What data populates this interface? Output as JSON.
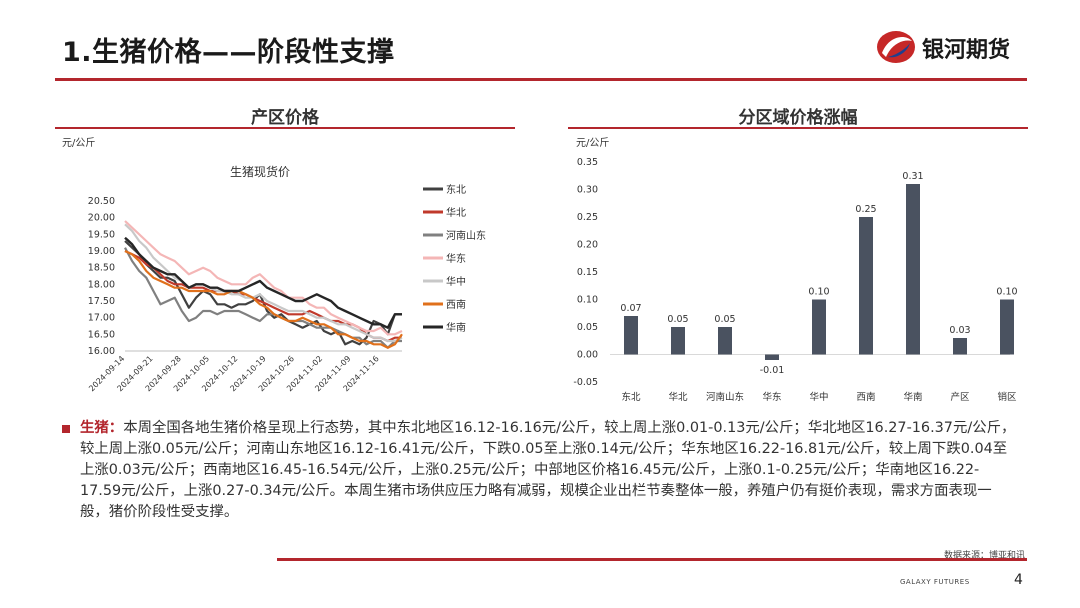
{
  "header": {
    "title": "1.生猪价格——阶段性支撑",
    "logo_text": "银河期货"
  },
  "left_panel": {
    "title": "产区价格",
    "unit": "元/公斤"
  },
  "right_panel": {
    "title": "分区域价格涨幅",
    "unit": "元/公斤"
  },
  "summary": {
    "lead": "生猪：",
    "text": "本周全国各地生猪价格呈现上行态势，其中东北地区16.12-16.16元/公斤，较上周上涨0.01-0.13元/公斤；华北地区16.27-16.37元/公斤，较上周上涨0.05元/公斤；河南山东地区16.12-16.41元/公斤，下跌0.05至上涨0.14元/公斤；华东地区16.22-16.81元/公斤，较上周下跌0.04至上涨0.03元/公斤；西南地区16.45-16.54元/公斤，上涨0.25元/公斤；中部地区价格16.45元/公斤，上涨0.1-0.25元/公斤；华南地区16.22-17.59元/公斤，上涨0.27-0.34元/公斤。本周生猪市场供应压力略有减弱，规模企业出栏节奏整体一般，养殖户仍有挺价表现，需求方面表现一般，猪价阶段性受支撑。"
  },
  "footer": {
    "source": "数据来源：博亚和讯",
    "brand": "GALAXY FUTURES",
    "page_number": "4"
  },
  "chart_data": [
    {
      "type": "line",
      "title": "生猪现货价",
      "ylim": [
        16.0,
        20.5
      ],
      "yticks": [
        "20.50",
        "20.00",
        "19.50",
        "19.00",
        "18.50",
        "18.00",
        "17.50",
        "17.00",
        "16.50",
        "16.00"
      ],
      "xticks": [
        "2024-09-14",
        "2024-09-21",
        "2024-09-28",
        "2024-10-05",
        "2024-10-12",
        "2024-10-19",
        "2024-10-26",
        "2024-11-02",
        "2024-11-09",
        "2024-11-16"
      ],
      "legend_position": "right",
      "series": [
        {
          "name": "东北",
          "color": "#404040",
          "values": [
            19.3,
            19.1,
            18.9,
            18.6,
            18.4,
            18.2,
            18.2,
            18.1,
            17.7,
            17.3,
            17.6,
            17.8,
            17.7,
            17.4,
            17.4,
            17.3,
            17.4,
            17.4,
            17.5,
            17.7,
            17.2,
            17.0,
            17.1,
            16.9,
            16.8,
            16.7,
            16.8,
            16.9,
            16.6,
            16.5,
            16.6,
            16.2,
            16.3,
            16.2,
            16.4,
            16.9,
            16.8,
            16.5,
            17.1,
            17.1
          ]
        },
        {
          "name": "华北",
          "color": "#c0392b",
          "values": [
            19.0,
            18.9,
            18.8,
            18.6,
            18.5,
            18.3,
            18.1,
            18.0,
            18.0,
            17.9,
            17.9,
            17.9,
            17.8,
            17.8,
            17.8,
            17.8,
            17.7,
            17.7,
            17.6,
            17.5,
            17.4,
            17.3,
            17.2,
            17.1,
            17.1,
            17.1,
            17.2,
            17.1,
            17.0,
            16.9,
            16.9,
            16.8,
            16.8,
            16.7,
            16.5,
            16.4,
            16.4,
            16.3,
            16.4,
            16.4
          ]
        },
        {
          "name": "河南山东",
          "color": "#808080",
          "values": [
            19.1,
            18.7,
            18.4,
            18.2,
            17.8,
            17.4,
            17.5,
            17.6,
            17.2,
            16.9,
            17.0,
            17.2,
            17.2,
            17.1,
            17.2,
            17.2,
            17.2,
            17.1,
            17.0,
            16.9,
            17.1,
            17.1,
            17.0,
            16.9,
            16.9,
            16.9,
            16.8,
            16.7,
            16.7,
            16.7,
            16.6,
            16.5,
            16.4,
            16.4,
            16.2,
            16.3,
            16.3,
            16.1,
            16.3,
            16.3
          ]
        },
        {
          "name": "华东",
          "color": "#f4b6b6",
          "values": [
            19.9,
            19.7,
            19.5,
            19.3,
            19.1,
            18.9,
            18.8,
            18.7,
            18.5,
            18.3,
            18.4,
            18.5,
            18.4,
            18.2,
            18.1,
            18.0,
            18.0,
            18.0,
            18.2,
            18.3,
            18.1,
            17.9,
            17.8,
            17.6,
            17.6,
            17.6,
            17.4,
            17.3,
            17.3,
            17.1,
            17.0,
            16.9,
            16.8,
            16.7,
            16.6,
            16.6,
            16.7,
            16.5,
            16.5,
            16.6
          ]
        },
        {
          "name": "华中",
          "color": "#c8c8c8",
          "values": [
            19.8,
            19.6,
            19.3,
            19.1,
            18.8,
            18.6,
            18.4,
            18.2,
            18.1,
            17.9,
            18.0,
            18.0,
            17.9,
            17.8,
            17.8,
            17.7,
            17.7,
            17.6,
            17.6,
            17.7,
            17.5,
            17.4,
            17.3,
            17.2,
            17.2,
            17.2,
            17.1,
            17.0,
            17.0,
            16.9,
            16.8,
            16.8,
            16.7,
            16.6,
            16.5,
            16.4,
            16.4,
            16.3,
            16.3,
            16.4
          ]
        },
        {
          "name": "西南",
          "color": "#e0701b",
          "values": [
            19.0,
            18.9,
            18.7,
            18.4,
            18.2,
            18.1,
            18.0,
            17.9,
            17.9,
            17.8,
            17.8,
            17.8,
            17.8,
            17.7,
            17.7,
            17.8,
            17.8,
            17.7,
            17.6,
            17.4,
            17.3,
            17.1,
            17.0,
            16.9,
            16.9,
            17.0,
            16.9,
            16.8,
            16.8,
            16.7,
            16.5,
            16.5,
            16.4,
            16.3,
            16.3,
            16.2,
            16.2,
            16.1,
            16.2,
            16.5
          ]
        },
        {
          "name": "华南",
          "color": "#262626",
          "values": [
            19.4,
            19.2,
            18.9,
            18.7,
            18.5,
            18.4,
            18.3,
            18.3,
            18.1,
            17.9,
            18.0,
            18.0,
            17.9,
            17.9,
            17.8,
            17.8,
            17.8,
            17.9,
            18.0,
            18.1,
            17.9,
            17.8,
            17.7,
            17.6,
            17.5,
            17.5,
            17.6,
            17.7,
            17.6,
            17.5,
            17.3,
            17.2,
            17.1,
            17.0,
            16.9,
            16.8,
            16.8,
            16.7,
            17.1,
            17.1
          ]
        }
      ]
    },
    {
      "type": "bar",
      "categories": [
        "东北",
        "华北",
        "河南山东",
        "华东",
        "华中",
        "西南",
        "华南",
        "产区",
        "销区"
      ],
      "values": [
        0.07,
        0.05,
        0.05,
        -0.01,
        0.1,
        0.25,
        0.31,
        0.03,
        0.1
      ],
      "labels": [
        "0.07",
        "0.05",
        "0.05",
        "-0.01",
        "0.10",
        "0.25",
        "0.31",
        "0.03",
        "0.10"
      ],
      "ylim": [
        -0.05,
        0.35
      ],
      "yticks": [
        "0.35",
        "0.30",
        "0.25",
        "0.20",
        "0.15",
        "0.10",
        "0.05",
        "0.00",
        "-0.05"
      ],
      "bar_color": "#4a5260"
    }
  ]
}
